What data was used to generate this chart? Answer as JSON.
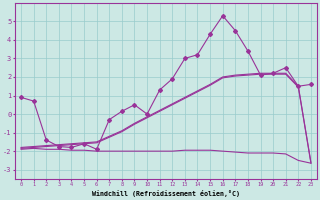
{
  "xlabel": "Windchill (Refroidissement éolien,°C)",
  "x_ticks": [
    0,
    1,
    2,
    3,
    4,
    5,
    6,
    7,
    8,
    9,
    10,
    11,
    12,
    13,
    14,
    15,
    16,
    17,
    18,
    19,
    20,
    21,
    22,
    23
  ],
  "ylim": [
    -3.5,
    6.0
  ],
  "xlim": [
    -0.5,
    23.5
  ],
  "yticks": [
    -3,
    -2,
    -1,
    0,
    1,
    2,
    3,
    4,
    5
  ],
  "bg_color": "#cce8e4",
  "line_color": "#993399",
  "grid_color": "#99cccc",
  "line1_x": [
    0,
    1,
    2,
    3,
    4,
    5,
    6,
    7,
    8,
    9,
    10,
    11,
    12,
    13,
    14,
    15,
    16,
    17,
    18,
    19,
    20,
    21,
    22,
    23
  ],
  "line1_y": [
    0.9,
    0.7,
    -1.4,
    -1.75,
    -1.8,
    -1.6,
    -1.9,
    -0.3,
    0.15,
    0.5,
    0.0,
    1.3,
    1.9,
    3.0,
    3.2,
    4.3,
    5.3,
    4.5,
    3.4,
    2.1,
    2.2,
    2.5,
    1.5,
    1.6
  ],
  "line2_x": [
    0,
    1,
    2,
    3,
    4,
    5,
    6,
    7,
    8,
    9,
    10,
    11,
    12,
    13,
    14,
    15,
    16,
    17,
    18,
    19,
    20,
    21,
    22,
    23
  ],
  "line2_y": [
    -1.8,
    -1.75,
    -1.7,
    -1.65,
    -1.6,
    -1.55,
    -1.5,
    -1.2,
    -0.9,
    -0.5,
    -0.15,
    0.2,
    0.55,
    0.9,
    1.25,
    1.6,
    2.0,
    2.1,
    2.15,
    2.2,
    2.2,
    2.2,
    1.5,
    -2.6
  ],
  "line3_x": [
    0,
    1,
    2,
    3,
    4,
    5,
    6,
    7,
    8,
    9,
    10,
    11,
    12,
    13,
    14,
    15,
    16,
    17,
    18,
    19,
    20,
    21,
    22,
    23
  ],
  "line3_y": [
    -1.85,
    -1.8,
    -1.75,
    -1.7,
    -1.65,
    -1.6,
    -1.55,
    -1.25,
    -0.95,
    -0.55,
    -0.2,
    0.15,
    0.5,
    0.85,
    1.2,
    1.55,
    1.95,
    2.05,
    2.1,
    2.15,
    2.15,
    2.15,
    1.45,
    -2.65
  ],
  "line4_x": [
    0,
    1,
    2,
    3,
    4,
    5,
    6,
    7,
    8,
    9,
    10,
    11,
    12,
    13,
    14,
    15,
    16,
    17,
    18,
    19,
    20,
    21,
    22,
    23
  ],
  "line4_y": [
    -1.9,
    -1.85,
    -1.9,
    -1.9,
    -1.95,
    -1.95,
    -2.0,
    -2.0,
    -2.0,
    -2.0,
    -2.0,
    -2.0,
    -2.0,
    -1.95,
    -1.95,
    -1.95,
    -2.0,
    -2.05,
    -2.1,
    -2.1,
    -2.1,
    -2.15,
    -2.5,
    -2.65
  ]
}
